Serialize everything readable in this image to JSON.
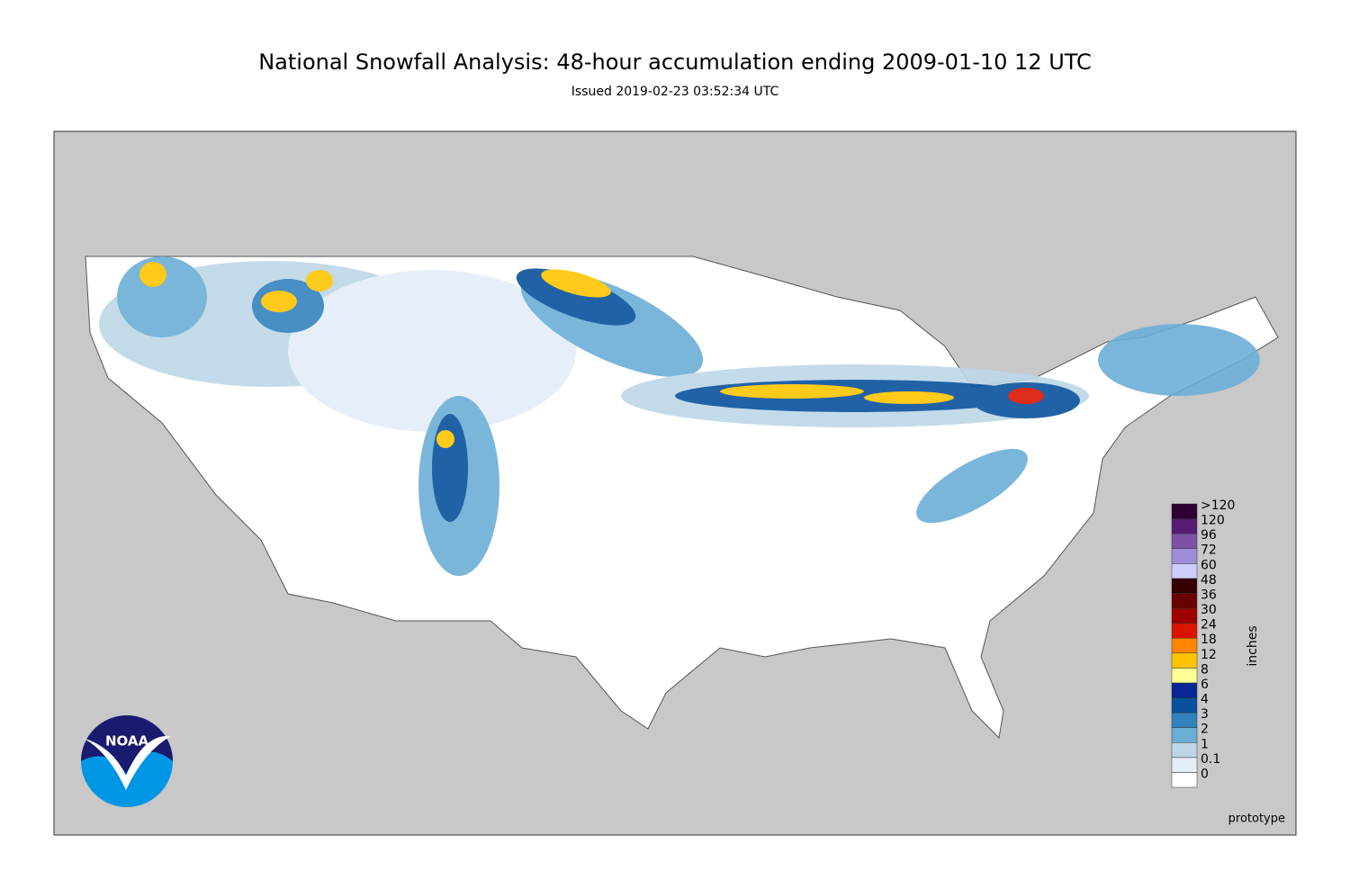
{
  "header": {
    "title": "National Snowfall Analysis: 48-hour accumulation ending 2009-01-10 12 UTC",
    "subtitle": "Issued 2019-02-23 03:52:34 UTC"
  },
  "logo": {
    "text": "NOAA"
  },
  "legend": {
    "title": "inches",
    "levels": [
      {
        "label": 0,
        "color": "#ffffff"
      },
      {
        "label": 0.1,
        "color": "#e4eef9"
      },
      {
        "label": 1,
        "color": "#bdd7e7"
      },
      {
        "label": 2,
        "color": "#6baed6"
      },
      {
        "label": 3,
        "color": "#3182bd"
      },
      {
        "label": 4,
        "color": "#08519c"
      },
      {
        "label": 6,
        "color": "#082694"
      },
      {
        "label": 8,
        "color": "#ffff96"
      },
      {
        "label": 12,
        "color": "#ffc400"
      },
      {
        "label": 18,
        "color": "#ff8700"
      },
      {
        "label": 24,
        "color": "#db1400"
      },
      {
        "label": 30,
        "color": "#9e0000"
      },
      {
        "label": 36,
        "color": "#690000"
      },
      {
        "label": 48,
        "color": "#360000"
      },
      {
        "label": 60,
        "color": "#ccccff"
      },
      {
        "label": 72,
        "color": "#9f8cd8"
      },
      {
        "label": 96,
        "color": "#7c52a5"
      },
      {
        "label": 120,
        "color": "#561c72"
      },
      {
        "label": ">120",
        "color": "#2e0033"
      }
    ]
  },
  "footer": {
    "note": "prototype"
  }
}
